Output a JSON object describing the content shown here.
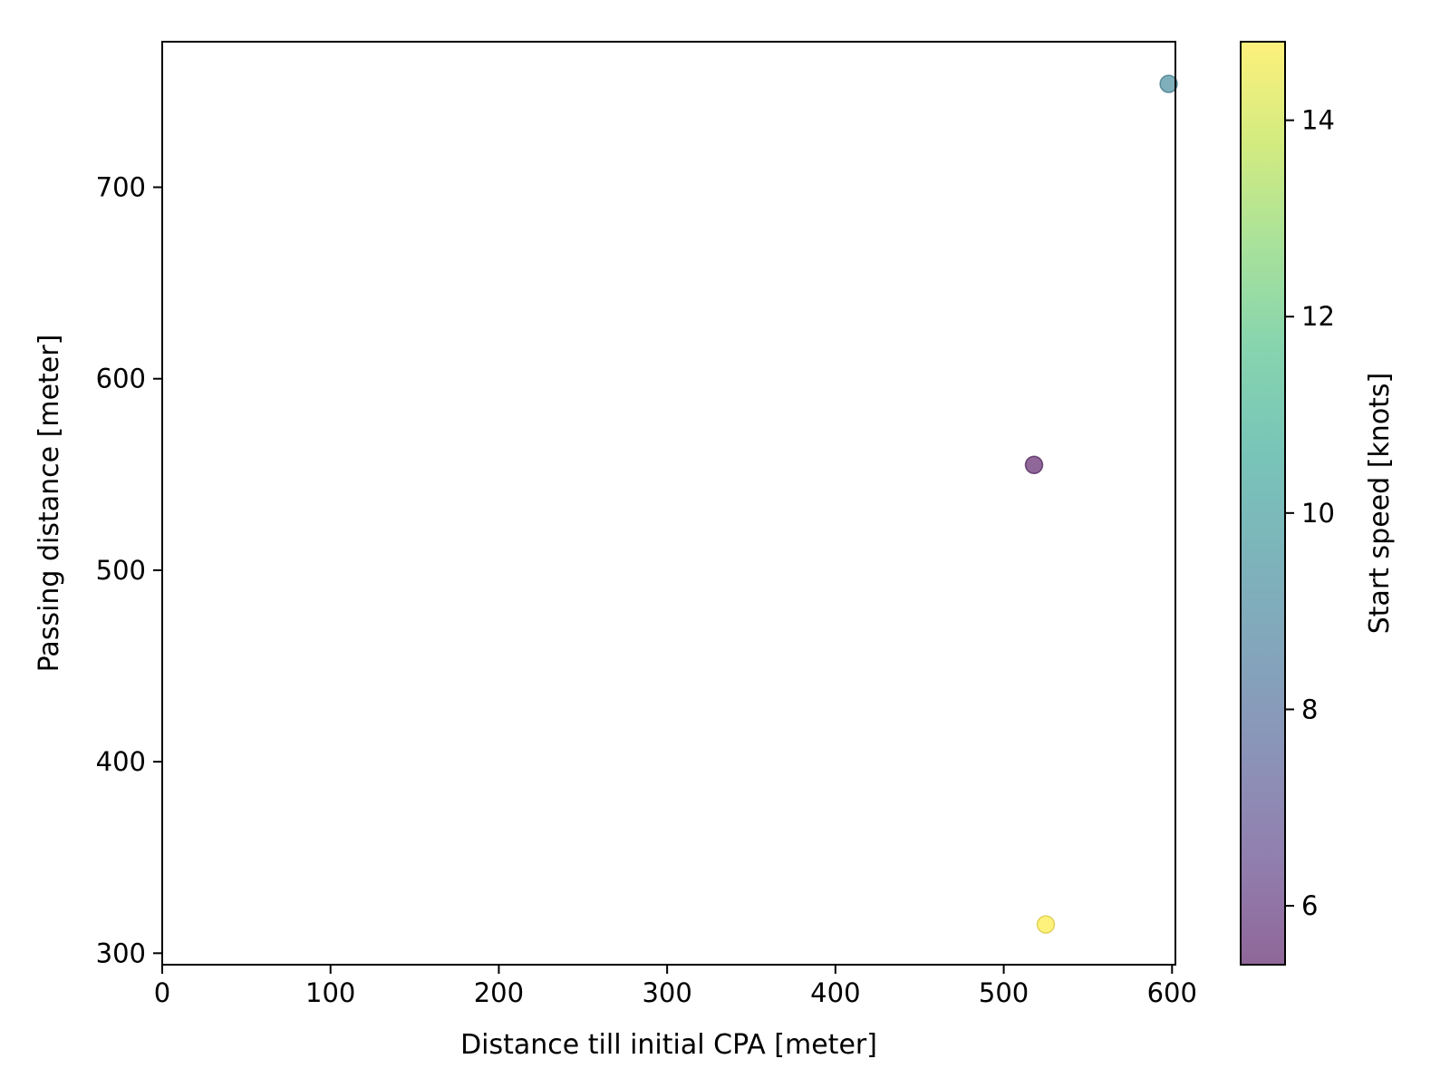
{
  "chart_data": {
    "type": "scatter",
    "title": "",
    "xlabel": "Distance till initial CPA [meter]",
    "ylabel": "Passing distance [meter]",
    "xlim": [
      0,
      602
    ],
    "ylim": [
      294,
      776
    ],
    "xticks": [
      0,
      100,
      200,
      300,
      400,
      500,
      600
    ],
    "yticks": [
      300,
      400,
      500,
      600,
      700
    ],
    "grid": false,
    "legend": "none",
    "points": [
      {
        "x": 518,
        "y": 555,
        "speed": 5.4
      },
      {
        "x": 598,
        "y": 754,
        "speed": 9.2
      },
      {
        "x": 525,
        "y": 315,
        "speed": 14.8
      }
    ],
    "colorbar": {
      "label": "Start speed [knots]",
      "min": 5.4,
      "max": 14.8,
      "ticks": [
        6,
        8,
        10,
        12,
        14
      ],
      "colormap": "viridis",
      "alpha": 0.6,
      "colors": [
        "#440154",
        "#482878",
        "#3e4989",
        "#31688e",
        "#26828e",
        "#1f9e89",
        "#35b779",
        "#6ece58",
        "#b5de2b",
        "#fde725"
      ]
    }
  }
}
